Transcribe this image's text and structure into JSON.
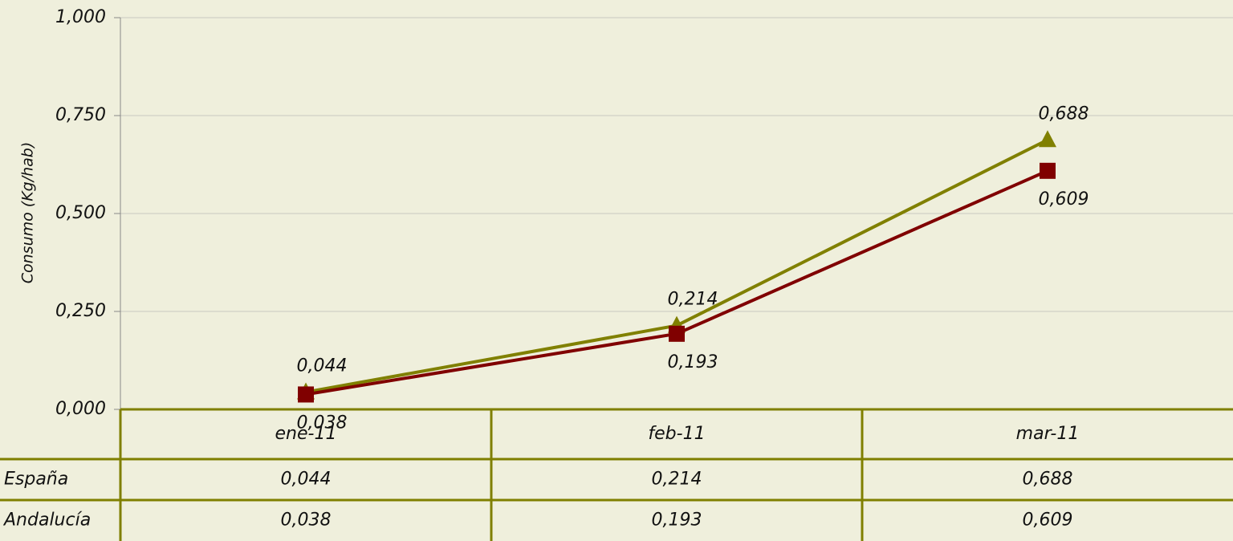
{
  "chart_data": {
    "type": "line",
    "y_label": "Consumo (Kg/hab)",
    "categories": [
      "ene-11",
      "feb-11",
      "mar-11"
    ],
    "series": [
      {
        "name": "España",
        "color": "#808000",
        "marker": "triangle",
        "values": [
          0.044,
          0.214,
          0.688
        ],
        "value_labels": [
          "0,044",
          "0,214",
          "0,688"
        ]
      },
      {
        "name": "Andalucía",
        "color": "#800000",
        "marker": "square",
        "values": [
          0.038,
          0.193,
          0.609
        ],
        "value_labels": [
          "0,038",
          "0,193",
          "0,609"
        ]
      }
    ],
    "ylim": [
      0,
      1
    ],
    "yticks": [
      {
        "value": 0,
        "label": "0,000"
      },
      {
        "value": 0.25,
        "label": "0,250"
      },
      {
        "value": 0.5,
        "label": "0,500"
      },
      {
        "value": 0.75,
        "label": "0,750"
      },
      {
        "value": 1,
        "label": "1,000"
      }
    ],
    "grid": true,
    "data_table": true
  }
}
